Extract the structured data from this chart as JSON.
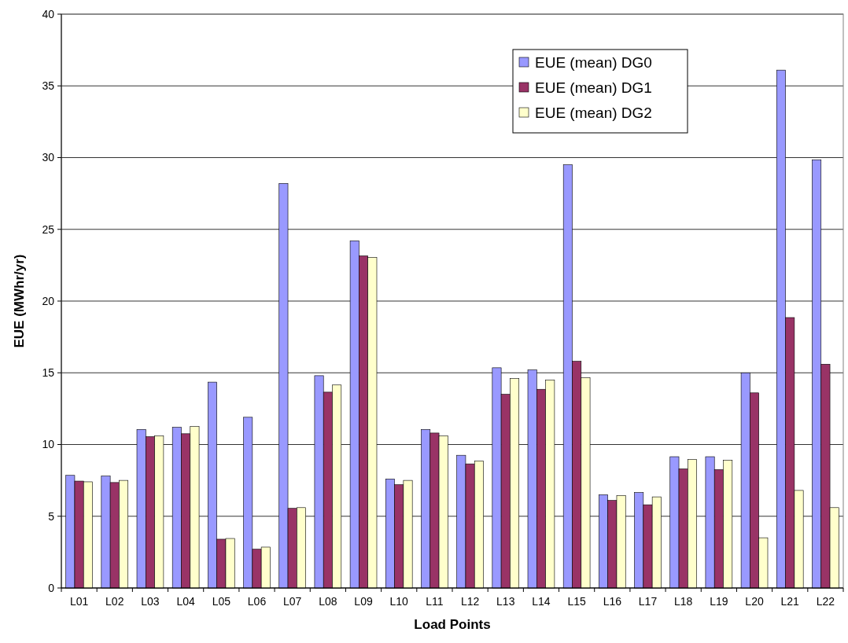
{
  "chart_data": {
    "type": "bar",
    "xlabel": "Load Points",
    "ylabel": "EUE (MWhr/yr)",
    "categories": [
      "L01",
      "L02",
      "L03",
      "L04",
      "L05",
      "L06",
      "L07",
      "L08",
      "L09",
      "L10",
      "L11",
      "L12",
      "L13",
      "L14",
      "L15",
      "L16",
      "L17",
      "L18",
      "L19",
      "L20",
      "L21",
      "L22"
    ],
    "series": [
      {
        "name": "EUE (mean) DG0",
        "color": "#9999ff",
        "values": [
          7.85,
          7.8,
          11.05,
          11.2,
          14.35,
          11.9,
          28.2,
          14.8,
          24.2,
          7.6,
          11.05,
          9.25,
          15.35,
          15.2,
          29.5,
          6.5,
          6.65,
          9.15,
          9.15,
          15.0,
          36.1,
          29.85
        ]
      },
      {
        "name": "EUE (mean) DG1",
        "color": "#993366",
        "values": [
          7.45,
          7.35,
          10.55,
          10.75,
          3.4,
          2.7,
          5.55,
          13.65,
          23.15,
          7.2,
          10.8,
          8.65,
          13.5,
          13.85,
          15.8,
          6.1,
          5.8,
          8.3,
          8.25,
          13.6,
          18.85,
          15.6
        ]
      },
      {
        "name": "EUE (mean) DG2",
        "color": "#ffffcc",
        "values": [
          7.4,
          7.5,
          10.6,
          11.25,
          3.45,
          2.85,
          5.6,
          14.15,
          23.05,
          7.5,
          10.6,
          8.85,
          14.6,
          14.5,
          14.65,
          6.45,
          6.35,
          8.95,
          8.9,
          3.5,
          6.8,
          5.6
        ]
      }
    ],
    "ylim": [
      0,
      40
    ],
    "yticks": [
      0,
      5,
      10,
      15,
      20,
      25,
      30,
      35,
      40
    ],
    "grid": "y",
    "legend": "top right"
  }
}
